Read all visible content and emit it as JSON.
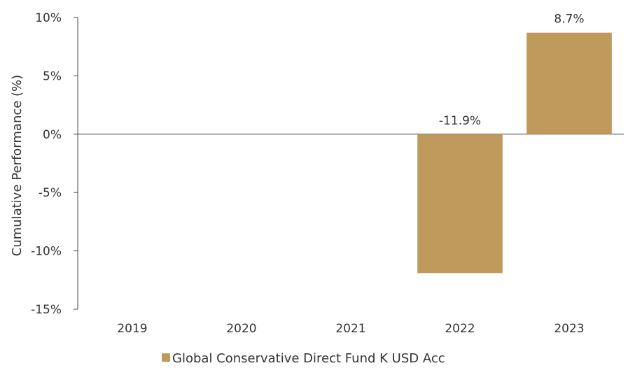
{
  "chart_data": {
    "type": "bar",
    "categories": [
      "2019",
      "2020",
      "2021",
      "2022",
      "2023"
    ],
    "series": [
      {
        "name": "Global Conservative Direct Fund K USD Acc",
        "values": [
          null,
          null,
          null,
          -11.9,
          8.7
        ],
        "data_labels": [
          "",
          "",
          "",
          "-11.9%",
          "8.7%"
        ],
        "color": "#BF9A5C"
      }
    ],
    "title": "",
    "xlabel": "",
    "ylabel": "Cumulative Performance (%)",
    "ylim": [
      -15,
      10
    ],
    "yticks": [
      10,
      5,
      0,
      -5,
      -10,
      -15
    ],
    "ytick_labels": [
      "10%",
      "5%",
      "0%",
      "-5%",
      "-10%",
      "-15%"
    ],
    "grid": false,
    "legend": {
      "position": "bottom",
      "entries": [
        "Global Conservative Direct Fund K USD Acc"
      ]
    }
  }
}
